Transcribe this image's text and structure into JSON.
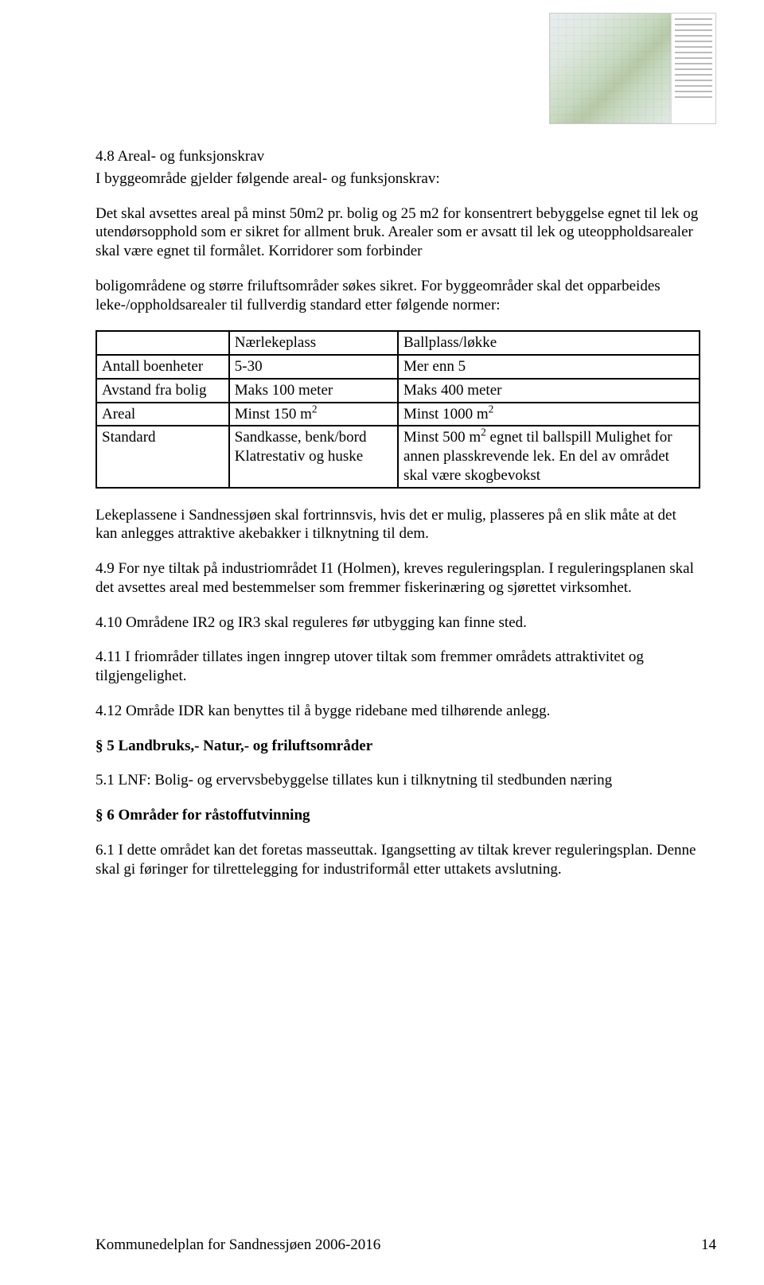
{
  "section48": {
    "heading": "4.8 Areal- og funksjonskrav",
    "line1": "I byggeområde gjelder følgende areal- og funksjonskrav:",
    "para1": "Det skal avsettes areal på minst 50m2 pr. bolig og 25 m2 for konsentrert bebyggelse egnet til lek og utendørsopphold som er sikret for allment bruk. Arealer som er avsatt til lek og uteoppholdsarealer skal være egnet til formålet. Korridorer som forbinder",
    "para2": "boligområdene og større friluftsområder søkes sikret. For byggeområder skal det opparbeides leke-/oppholdsarealer til fullverdig standard etter følgende normer:"
  },
  "table": {
    "columns": [
      "",
      "Nærlekeplass",
      "Ballplass/løkke"
    ],
    "rows": [
      {
        "label": "Antall boenheter",
        "c2": "5-30",
        "c3": "Mer enn 5"
      },
      {
        "label": "Avstand fra bolig",
        "c2": "Maks 100 meter",
        "c3": "Maks 400 meter"
      },
      {
        "label": "Areal",
        "c2_html": "Minst 150 m<sup>2</sup>",
        "c3_html": "Minst 1000 m<sup>2</sup>"
      },
      {
        "label": "Standard",
        "c2": "Sandkasse, benk/bord Klatrestativ og huske",
        "c3_html": "Minst 500 m<sup>2</sup> egnet til ballspill Mulighet for annen plasskrevende lek. En del av området skal være skogbevokst"
      }
    ]
  },
  "afterTable": {
    "p1": "Lekeplassene i Sandnessjøen skal fortrinnsvis, hvis det er mulig, plasseres på en slik måte at det kan anlegges attraktive akebakker i tilknytning til dem.",
    "p2": "4.9 For nye tiltak på industriområdet I1 (Holmen), kreves reguleringsplan. I reguleringsplanen skal det avsettes areal med bestemmelser som fremmer fiskerinæring og sjørettet virksomhet.",
    "p3": "4.10 Områdene IR2 og IR3 skal reguleres før utbygging kan finne sted.",
    "p4": "4.11 I friområder tillates ingen inngrep utover tiltak som fremmer områdets attraktivitet og tilgjengelighet.",
    "p5": "4.12 Område IDR kan benyttes til å bygge ridebane med tilhørende anlegg."
  },
  "section5": {
    "heading": "§ 5 Landbruks,- Natur,- og friluftsområder",
    "p1": "5.1 LNF: Bolig- og ervervsbebyggelse tillates kun i tilknytning til stedbunden næring"
  },
  "section6": {
    "heading": "§ 6 Områder for råstoffutvinning",
    "p1": "6.1 I dette området kan det foretas masseuttak. Igangsetting av tiltak krever reguleringsplan. Denne skal gi føringer for tilrettelegging for industriformål etter uttakets avslutning."
  },
  "footer": {
    "text": "Kommunedelplan for Sandnessjøen 2006-2016",
    "page": "14"
  }
}
